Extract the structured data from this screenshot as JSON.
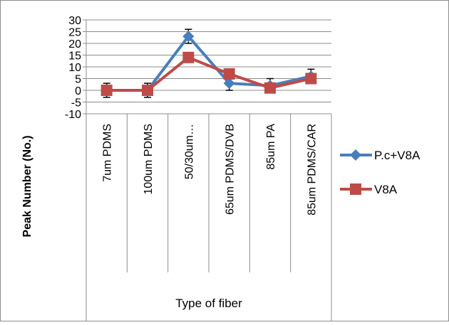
{
  "chart_data": {
    "type": "line",
    "title": "",
    "xlabel": "Type of fiber",
    "ylabel": "Peak Number (No.)",
    "categories": [
      "7um PDMS",
      "100um PDMS",
      "50/30um…",
      "65um PDMS/DVB",
      "85um PA",
      "85um PDMS/CAR"
    ],
    "ylim": [
      -10,
      30
    ],
    "yticks": [
      -10,
      -5,
      0,
      5,
      10,
      15,
      20,
      25,
      30
    ],
    "ytick_labels": [
      "-10",
      "-5",
      "0",
      "5",
      "10",
      "15",
      "20",
      "25",
      "30"
    ],
    "grid": true,
    "legend_position": "right",
    "series": [
      {
        "name": "P.c+V8A",
        "color": "#4a7ebb",
        "marker": "diamond",
        "values": [
          0,
          0,
          23,
          3,
          2,
          6
        ],
        "errors": [
          3,
          3,
          3,
          3,
          3,
          3
        ]
      },
      {
        "name": "V8A",
        "color": "#be4b48",
        "marker": "square",
        "values": [
          0,
          0,
          14,
          7,
          1,
          5
        ],
        "errors": [
          0,
          0,
          0,
          0,
          0,
          0
        ]
      }
    ]
  }
}
